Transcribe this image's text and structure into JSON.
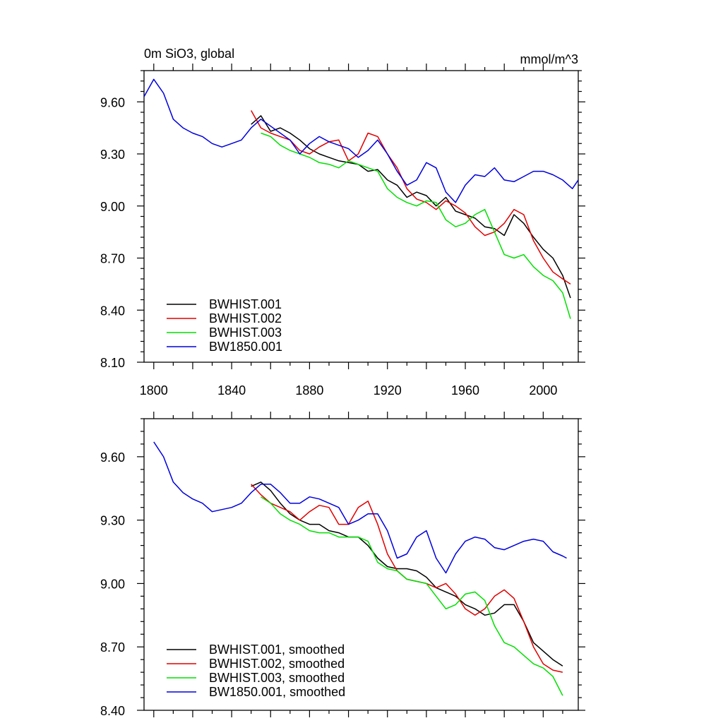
{
  "colors": {
    "BWHIST_001": "#000000",
    "BWHIST_002": "#e00000",
    "BWHIST_003": "#00e000",
    "BW1850_001": "#0000dd"
  },
  "chart_data": [
    {
      "type": "line",
      "title": "0m SiO3, global",
      "units": "mmol/m^3",
      "xlim": [
        1795,
        2018
      ],
      "ylim": [
        8.1,
        9.78
      ],
      "x_ticks": [
        "1800",
        "1840",
        "1880",
        "1920",
        "1960",
        "2000"
      ],
      "y_ticks": [
        "8.10",
        "8.40",
        "8.70",
        "9.00",
        "9.30",
        "9.60"
      ],
      "legend_position": "bottom-left",
      "grid": false,
      "series": [
        {
          "name": "BWHIST.001",
          "color": "#000000",
          "x": [
            1850,
            1855,
            1860,
            1865,
            1870,
            1875,
            1880,
            1885,
            1890,
            1895,
            1900,
            1905,
            1910,
            1915,
            1920,
            1925,
            1930,
            1935,
            1940,
            1945,
            1950,
            1955,
            1960,
            1965,
            1970,
            1975,
            1980,
            1985,
            1990,
            1995,
            2000,
            2005,
            2010,
            2014
          ],
          "y": [
            9.47,
            9.52,
            9.43,
            9.45,
            9.42,
            9.38,
            9.33,
            9.3,
            9.28,
            9.26,
            9.25,
            9.24,
            9.2,
            9.21,
            9.15,
            9.12,
            9.05,
            9.08,
            9.06,
            9.0,
            9.05,
            8.97,
            8.95,
            8.93,
            8.88,
            8.87,
            8.83,
            8.95,
            8.9,
            8.82,
            8.75,
            8.7,
            8.6,
            8.47
          ]
        },
        {
          "name": "BWHIST.002",
          "color": "#e00000",
          "x": [
            1850,
            1855,
            1860,
            1865,
            1870,
            1875,
            1880,
            1885,
            1890,
            1895,
            1900,
            1905,
            1910,
            1915,
            1920,
            1925,
            1930,
            1935,
            1940,
            1945,
            1950,
            1955,
            1960,
            1965,
            1970,
            1975,
            1980,
            1985,
            1990,
            1995,
            2000,
            2005,
            2010,
            2014
          ],
          "y": [
            9.55,
            9.45,
            9.42,
            9.4,
            9.38,
            9.32,
            9.3,
            9.34,
            9.37,
            9.38,
            9.26,
            9.3,
            9.42,
            9.4,
            9.3,
            9.22,
            9.1,
            9.04,
            9.02,
            8.98,
            9.03,
            9.0,
            8.96,
            8.88,
            8.83,
            8.85,
            8.9,
            8.98,
            8.95,
            8.8,
            8.7,
            8.62,
            8.58,
            8.55
          ]
        },
        {
          "name": "BWHIST.003",
          "color": "#00e000",
          "x": [
            1855,
            1860,
            1865,
            1870,
            1875,
            1880,
            1885,
            1890,
            1895,
            1900,
            1905,
            1910,
            1915,
            1920,
            1925,
            1930,
            1935,
            1940,
            1945,
            1950,
            1955,
            1960,
            1965,
            1970,
            1975,
            1980,
            1985,
            1990,
            1995,
            2000,
            2005,
            2010,
            2014
          ],
          "y": [
            9.42,
            9.4,
            9.35,
            9.32,
            9.3,
            9.28,
            9.25,
            9.24,
            9.22,
            9.26,
            9.24,
            9.22,
            9.2,
            9.1,
            9.05,
            9.02,
            9.0,
            9.03,
            9.02,
            8.92,
            8.88,
            8.9,
            8.95,
            8.98,
            8.85,
            8.72,
            8.7,
            8.72,
            8.65,
            8.6,
            8.57,
            8.5,
            8.35
          ]
        },
        {
          "name": "BW1850.001",
          "color": "#0000dd",
          "x": [
            1795,
            1800,
            1805,
            1810,
            1815,
            1820,
            1825,
            1830,
            1835,
            1840,
            1845,
            1850,
            1855,
            1860,
            1865,
            1870,
            1875,
            1880,
            1885,
            1890,
            1895,
            1900,
            1905,
            1910,
            1915,
            1920,
            1925,
            1930,
            1935,
            1940,
            1945,
            1950,
            1955,
            1960,
            1965,
            1970,
            1975,
            1980,
            1985,
            1990,
            1995,
            2000,
            2005,
            2010,
            2015,
            2018
          ],
          "y": [
            9.63,
            9.73,
            9.65,
            9.5,
            9.45,
            9.42,
            9.4,
            9.36,
            9.34,
            9.36,
            9.38,
            9.45,
            9.5,
            9.46,
            9.42,
            9.38,
            9.3,
            9.36,
            9.4,
            9.37,
            9.35,
            9.33,
            9.28,
            9.32,
            9.38,
            9.3,
            9.2,
            9.12,
            9.15,
            9.25,
            9.22,
            9.08,
            9.02,
            9.12,
            9.18,
            9.17,
            9.22,
            9.15,
            9.14,
            9.17,
            9.2,
            9.2,
            9.18,
            9.15,
            9.1,
            9.15
          ]
        }
      ]
    },
    {
      "type": "line",
      "xlim": [
        1795,
        2018
      ],
      "ylim": [
        8.4,
        9.78
      ],
      "x_ticks": [],
      "y_ticks": [
        "8.40",
        "8.70",
        "9.00",
        "9.30",
        "9.60"
      ],
      "legend_position": "bottom-left",
      "grid": false,
      "series": [
        {
          "name": "BWHIST.001, smoothed",
          "color": "#000000",
          "x": [
            1850,
            1855,
            1860,
            1865,
            1870,
            1875,
            1880,
            1885,
            1890,
            1895,
            1900,
            1905,
            1910,
            1915,
            1920,
            1925,
            1930,
            1935,
            1940,
            1945,
            1950,
            1955,
            1960,
            1965,
            1970,
            1975,
            1980,
            1985,
            1990,
            1995,
            2000,
            2005,
            2010
          ],
          "y": [
            9.46,
            9.48,
            9.44,
            9.38,
            9.33,
            9.3,
            9.28,
            9.28,
            9.25,
            9.24,
            9.22,
            9.22,
            9.18,
            9.12,
            9.08,
            9.07,
            9.07,
            9.06,
            9.03,
            8.98,
            8.96,
            8.94,
            8.9,
            8.88,
            8.85,
            8.86,
            8.9,
            8.9,
            8.82,
            8.72,
            8.68,
            8.64,
            8.61
          ]
        },
        {
          "name": "BWHIST.002, smoothed",
          "color": "#e00000",
          "x": [
            1850,
            1855,
            1860,
            1865,
            1870,
            1875,
            1880,
            1885,
            1890,
            1895,
            1900,
            1905,
            1910,
            1915,
            1920,
            1925,
            1930,
            1935,
            1940,
            1945,
            1950,
            1955,
            1960,
            1965,
            1970,
            1975,
            1980,
            1985,
            1990,
            1995,
            2000,
            2005,
            2010
          ],
          "y": [
            9.47,
            9.42,
            9.38,
            9.36,
            9.34,
            9.3,
            9.34,
            9.37,
            9.36,
            9.28,
            9.28,
            9.36,
            9.39,
            9.28,
            9.14,
            9.06,
            9.02,
            9.01,
            9.0,
            8.98,
            9.0,
            8.95,
            8.88,
            8.85,
            8.88,
            8.94,
            8.97,
            8.93,
            8.82,
            8.7,
            8.62,
            8.59,
            8.58
          ]
        },
        {
          "name": "BWHIST.003, smoothed",
          "color": "#00e000",
          "x": [
            1855,
            1860,
            1865,
            1870,
            1875,
            1880,
            1885,
            1890,
            1895,
            1900,
            1905,
            1910,
            1915,
            1920,
            1925,
            1930,
            1935,
            1940,
            1945,
            1950,
            1955,
            1960,
            1965,
            1970,
            1975,
            1980,
            1985,
            1990,
            1995,
            2000,
            2005,
            2010
          ],
          "y": [
            9.41,
            9.38,
            9.33,
            9.3,
            9.28,
            9.25,
            9.24,
            9.24,
            9.22,
            9.22,
            9.22,
            9.2,
            9.1,
            9.07,
            9.06,
            9.02,
            9.01,
            9.0,
            8.94,
            8.88,
            8.9,
            8.95,
            8.96,
            8.92,
            8.8,
            8.72,
            8.7,
            8.66,
            8.62,
            8.6,
            8.56,
            8.47
          ]
        },
        {
          "name": "BW1850.001, smoothed",
          "color": "#0000dd",
          "x": [
            1800,
            1805,
            1810,
            1815,
            1820,
            1825,
            1830,
            1835,
            1840,
            1845,
            1850,
            1855,
            1860,
            1865,
            1870,
            1875,
            1880,
            1885,
            1890,
            1895,
            1900,
            1905,
            1910,
            1915,
            1920,
            1925,
            1930,
            1935,
            1940,
            1945,
            1950,
            1955,
            1960,
            1965,
            1970,
            1975,
            1980,
            1985,
            1990,
            1995,
            2000,
            2005,
            2010,
            2012
          ],
          "y": [
            9.67,
            9.6,
            9.48,
            9.43,
            9.4,
            9.38,
            9.34,
            9.35,
            9.36,
            9.38,
            9.43,
            9.47,
            9.47,
            9.43,
            9.38,
            9.38,
            9.41,
            9.4,
            9.38,
            9.36,
            9.28,
            9.3,
            9.33,
            9.33,
            9.25,
            9.12,
            9.14,
            9.22,
            9.25,
            9.12,
            9.05,
            9.14,
            9.2,
            9.22,
            9.21,
            9.17,
            9.16,
            9.18,
            9.2,
            9.21,
            9.2,
            9.15,
            9.13,
            9.12
          ]
        }
      ]
    }
  ]
}
